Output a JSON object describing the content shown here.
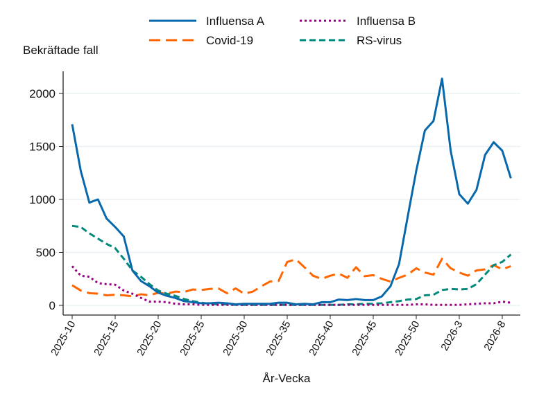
{
  "chart_data": {
    "type": "line",
    "ylabel": "Bekräftade fall",
    "xlabel": "År-Vecka",
    "ylim": [
      0,
      2100
    ],
    "yticks": [
      0,
      500,
      1000,
      1500,
      2000
    ],
    "grid": true,
    "legend_position": "top",
    "x": [
      "2025-10",
      "2025-11",
      "2025-12",
      "2025-13",
      "2025-14",
      "2025-15",
      "2025-16",
      "2025-17",
      "2025-18",
      "2025-19",
      "2025-20",
      "2025-21",
      "2025-22",
      "2025-23",
      "2025-24",
      "2025-25",
      "2025-26",
      "2025-27",
      "2025-28",
      "2025-29",
      "2025-30",
      "2025-31",
      "2025-32",
      "2025-33",
      "2025-34",
      "2025-35",
      "2025-36",
      "2025-37",
      "2025-38",
      "2025-39",
      "2025-40",
      "2025-41",
      "2025-42",
      "2025-43",
      "2025-44",
      "2025-45",
      "2025-46",
      "2025-47",
      "2025-48",
      "2025-49",
      "2025-50",
      "2025-51",
      "2025-52",
      "2026-1",
      "2026-2",
      "2026-3",
      "2026-4",
      "2026-5",
      "2026-6",
      "2026-7",
      "2026-8",
      "2026-9"
    ],
    "xticks": [
      "2025-10",
      "2025-15",
      "2025-20",
      "2025-25",
      "2025-30",
      "2025-35",
      "2025-40",
      "2025-45",
      "2025-50",
      "2026-3",
      "2026-8"
    ],
    "series": [
      {
        "name": "Influensa A",
        "color": "#0868ac",
        "dash": "solid",
        "values": [
          1710,
          1270,
          970,
          1000,
          820,
          740,
          650,
          330,
          230,
          180,
          120,
          90,
          70,
          40,
          30,
          20,
          20,
          25,
          20,
          10,
          15,
          15,
          15,
          15,
          25,
          25,
          10,
          15,
          10,
          30,
          30,
          55,
          50,
          60,
          50,
          50,
          85,
          180,
          390,
          835,
          1270,
          1650,
          1740,
          2140,
          1460,
          1050,
          960,
          1090,
          1420,
          1540,
          1460,
          1200
        ]
      },
      {
        "name": "Covid-19",
        "color": "#ff6600",
        "dash": "long",
        "values": [
          190,
          140,
          115,
          110,
          95,
          100,
          95,
          85,
          105,
          95,
          120,
          110,
          130,
          125,
          150,
          145,
          155,
          160,
          115,
          160,
          110,
          130,
          180,
          225,
          230,
          410,
          435,
          360,
          280,
          250,
          280,
          300,
          260,
          360,
          275,
          285,
          250,
          225,
          260,
          290,
          350,
          310,
          290,
          440,
          350,
          310,
          280,
          330,
          340,
          380,
          340,
          370
        ]
      },
      {
        "name": "Influensa B",
        "color": "#990080",
        "dash": "dot",
        "values": [
          370,
          280,
          270,
          210,
          200,
          195,
          140,
          110,
          70,
          35,
          35,
          30,
          15,
          10,
          10,
          5,
          5,
          5,
          5,
          5,
          5,
          5,
          5,
          5,
          5,
          5,
          5,
          5,
          5,
          5,
          5,
          5,
          5,
          5,
          5,
          5,
          5,
          5,
          5,
          5,
          10,
          10,
          5,
          5,
          5,
          5,
          10,
          15,
          20,
          20,
          35,
          25
        ]
      },
      {
        "name": "RS-virus",
        "color": "#00897b",
        "dash": "short",
        "values": [
          750,
          740,
          680,
          630,
          580,
          540,
          440,
          330,
          270,
          200,
          140,
          110,
          90,
          60,
          40,
          25,
          15,
          10,
          10,
          5,
          5,
          5,
          5,
          5,
          5,
          5,
          5,
          5,
          5,
          5,
          5,
          5,
          10,
          10,
          15,
          15,
          20,
          30,
          40,
          55,
          60,
          95,
          100,
          145,
          155,
          150,
          155,
          200,
          290,
          380,
          410,
          480
        ]
      }
    ]
  }
}
